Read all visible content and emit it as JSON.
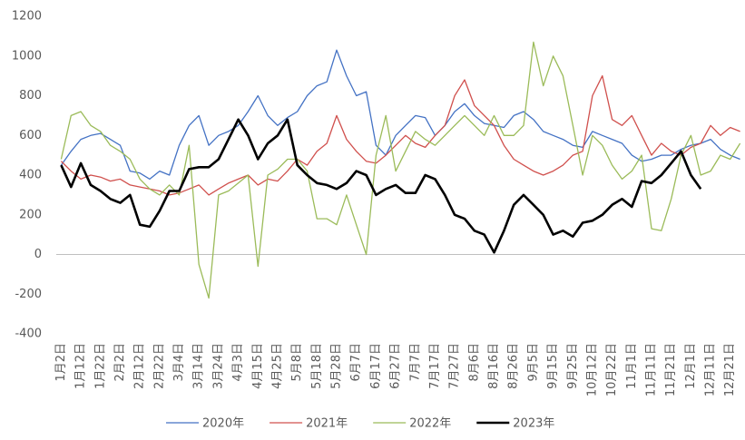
{
  "chart_data": {
    "type": "line",
    "categories": [
      "1月2日",
      null,
      "1月12日",
      null,
      "1月22日",
      null,
      "2月2日",
      null,
      "2月12日",
      null,
      "2月22日",
      null,
      "3月4日",
      null,
      "3月14日",
      null,
      "3月24日",
      null,
      "4月3日",
      null,
      "4月15日",
      null,
      "4月25日",
      null,
      "5月8日",
      null,
      "5月18日",
      null,
      "5月28日",
      null,
      "6月7日",
      null,
      "6月17日",
      null,
      "6月27日",
      null,
      "7月7日",
      null,
      "7月17日",
      null,
      "7月27日",
      null,
      "8月6日",
      null,
      "8月16日",
      null,
      "8月26日",
      null,
      "9月5日",
      null,
      "9月15日",
      null,
      "9月25日",
      null,
      "10月12日",
      null,
      "10月22日",
      null,
      "11月1日",
      null,
      "11月11日",
      null,
      "11月21日",
      null,
      "12月1日",
      null,
      "12月11日",
      null,
      "12月21日",
      null
    ],
    "series": [
      {
        "name": "2020年",
        "color": "#4472c4",
        "width": 1.3,
        "values": [
          450,
          520,
          580,
          600,
          610,
          580,
          550,
          420,
          410,
          380,
          420,
          400,
          550,
          650,
          700,
          550,
          600,
          620,
          650,
          720,
          800,
          700,
          650,
          690,
          720,
          800,
          850,
          870,
          1030,
          900,
          800,
          820,
          550,
          500,
          600,
          650,
          700,
          690,
          600,
          650,
          720,
          760,
          700,
          660,
          650,
          640,
          700,
          720,
          680,
          620,
          600,
          580,
          550,
          540,
          620,
          600,
          580,
          560,
          500,
          470,
          480,
          500,
          500,
          530,
          550,
          560,
          580,
          530,
          500,
          480
        ]
      },
      {
        "name": "2021年",
        "color": "#d0504d",
        "width": 1.3,
        "values": [
          470,
          420,
          380,
          400,
          390,
          370,
          380,
          350,
          340,
          330,
          320,
          300,
          310,
          330,
          350,
          300,
          330,
          360,
          380,
          400,
          350,
          380,
          370,
          420,
          480,
          450,
          520,
          560,
          700,
          580,
          520,
          470,
          460,
          500,
          550,
          600,
          560,
          540,
          600,
          650,
          800,
          880,
          750,
          700,
          650,
          550,
          480,
          450,
          420,
          400,
          420,
          450,
          500,
          520,
          800,
          900,
          680,
          650,
          700,
          600,
          500,
          560,
          520,
          500,
          540,
          560,
          650,
          600,
          640,
          620
        ]
      },
      {
        "name": "2022年",
        "color": "#9bbb59",
        "width": 1.3,
        "values": [
          480,
          700,
          720,
          650,
          620,
          550,
          520,
          480,
          380,
          330,
          300,
          350,
          300,
          550,
          -50,
          -220,
          300,
          320,
          360,
          400,
          -60,
          400,
          430,
          480,
          480,
          420,
          180,
          180,
          150,
          300,
          150,
          0,
          500,
          700,
          420,
          520,
          620,
          580,
          550,
          600,
          650,
          700,
          650,
          600,
          700,
          600,
          600,
          650,
          1070,
          850,
          1000,
          900,
          650,
          400,
          600,
          550,
          450,
          380,
          420,
          500,
          130,
          120,
          280,
          500,
          600,
          400,
          420,
          500,
          480,
          560
        ]
      },
      {
        "name": "2023年",
        "color": "#000000",
        "width": 2.6,
        "values": [
          450,
          340,
          460,
          350,
          320,
          280,
          260,
          300,
          150,
          140,
          220,
          320,
          320,
          430,
          440,
          440,
          480,
          580,
          680,
          600,
          480,
          560,
          600,
          680,
          450,
          400,
          360,
          350,
          330,
          360,
          420,
          400,
          300,
          330,
          350,
          310,
          310,
          400,
          380,
          300,
          200,
          180,
          120,
          100,
          10,
          120,
          250,
          300,
          250,
          200,
          100,
          120,
          90,
          160,
          170,
          200,
          250,
          280,
          240,
          370,
          360,
          400,
          460,
          520,
          400,
          330,
          null,
          null,
          null,
          null
        ]
      }
    ],
    "ylim": [
      -400,
      1200
    ],
    "yticks": [
      1200,
      1000,
      800,
      600,
      400,
      200,
      0,
      -200,
      -400
    ],
    "grid": false,
    "legend": "bottom"
  }
}
